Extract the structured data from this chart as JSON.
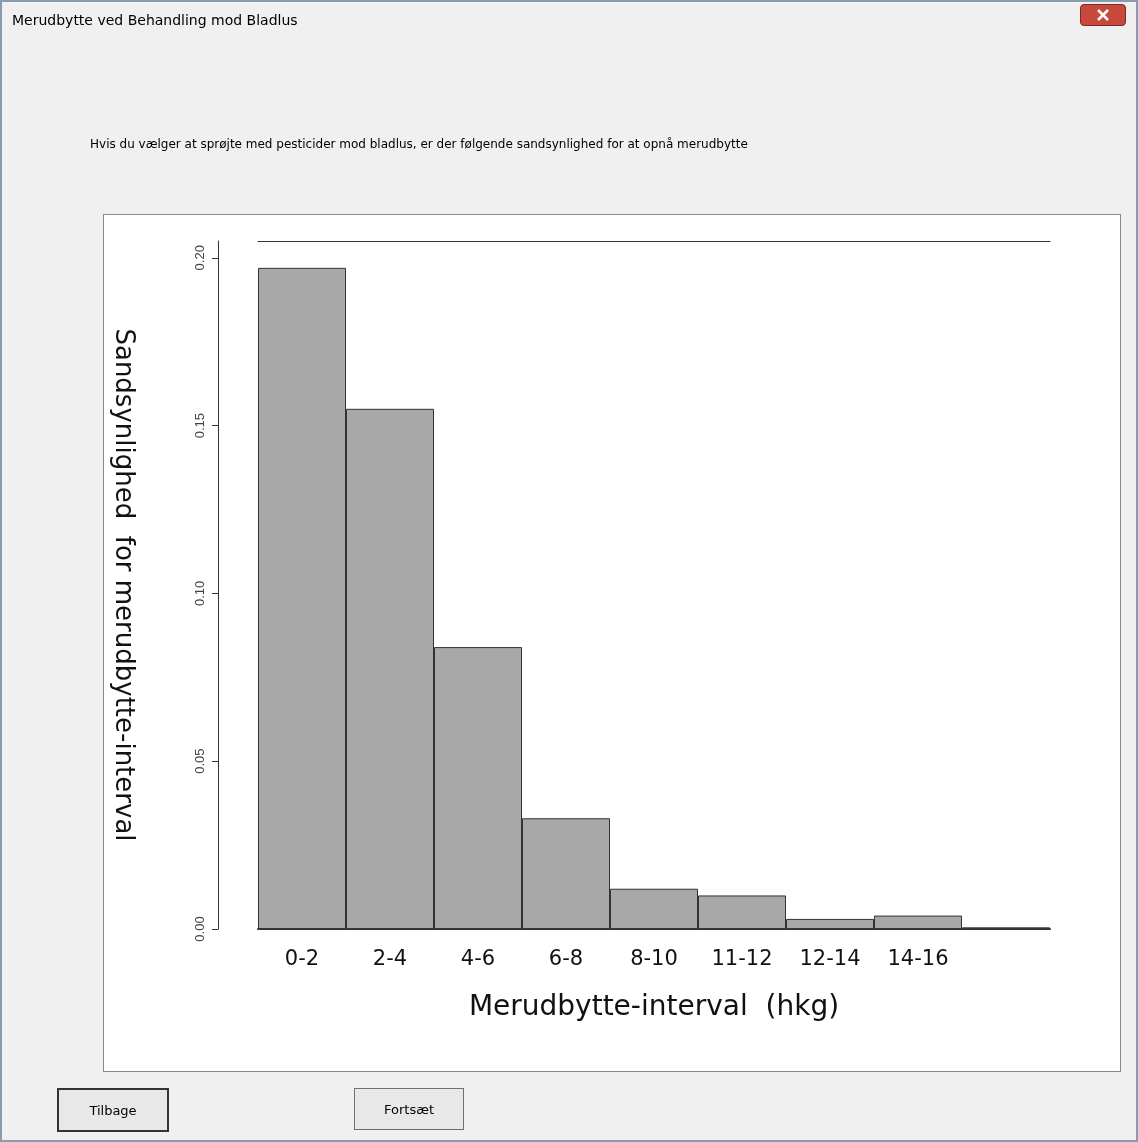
{
  "chart_data": {
    "type": "bar",
    "title": "Merudbytte ved Behandling mod Bladlus",
    "subtitle": "Hvis du vælger at sprøjte med pesticider mod bladlus, er der følgende sandsynlighed for at opnå merudbytte",
    "xlabel": "Merudbytte-interval  (hkg)",
    "ylabel": "Sandsynlighed  for merudbytte-interval",
    "categories": [
      "0-2",
      "2-4",
      "4-6",
      "6-8",
      "8-10",
      "11-12",
      "12-14",
      "14-16",
      null
    ],
    "values": [
      0.197,
      0.155,
      0.084,
      0.033,
      0.012,
      0.01,
      0.003,
      0.004,
      0.0005
    ],
    "color": "#a8a8a8",
    "ylim": [
      0,
      0.205
    ],
    "yticks": [
      {
        "value": 0,
        "label": "0.00"
      },
      {
        "value": 0.05,
        "label": "0.05"
      },
      {
        "value": 0.1,
        "label": "0.10"
      },
      {
        "value": 0.15,
        "label": "0.15"
      },
      {
        "value": 0.2,
        "label": "0.20"
      }
    ],
    "grid": false,
    "annotations": [
      "Tilbage",
      "Fortsæt"
    ]
  }
}
